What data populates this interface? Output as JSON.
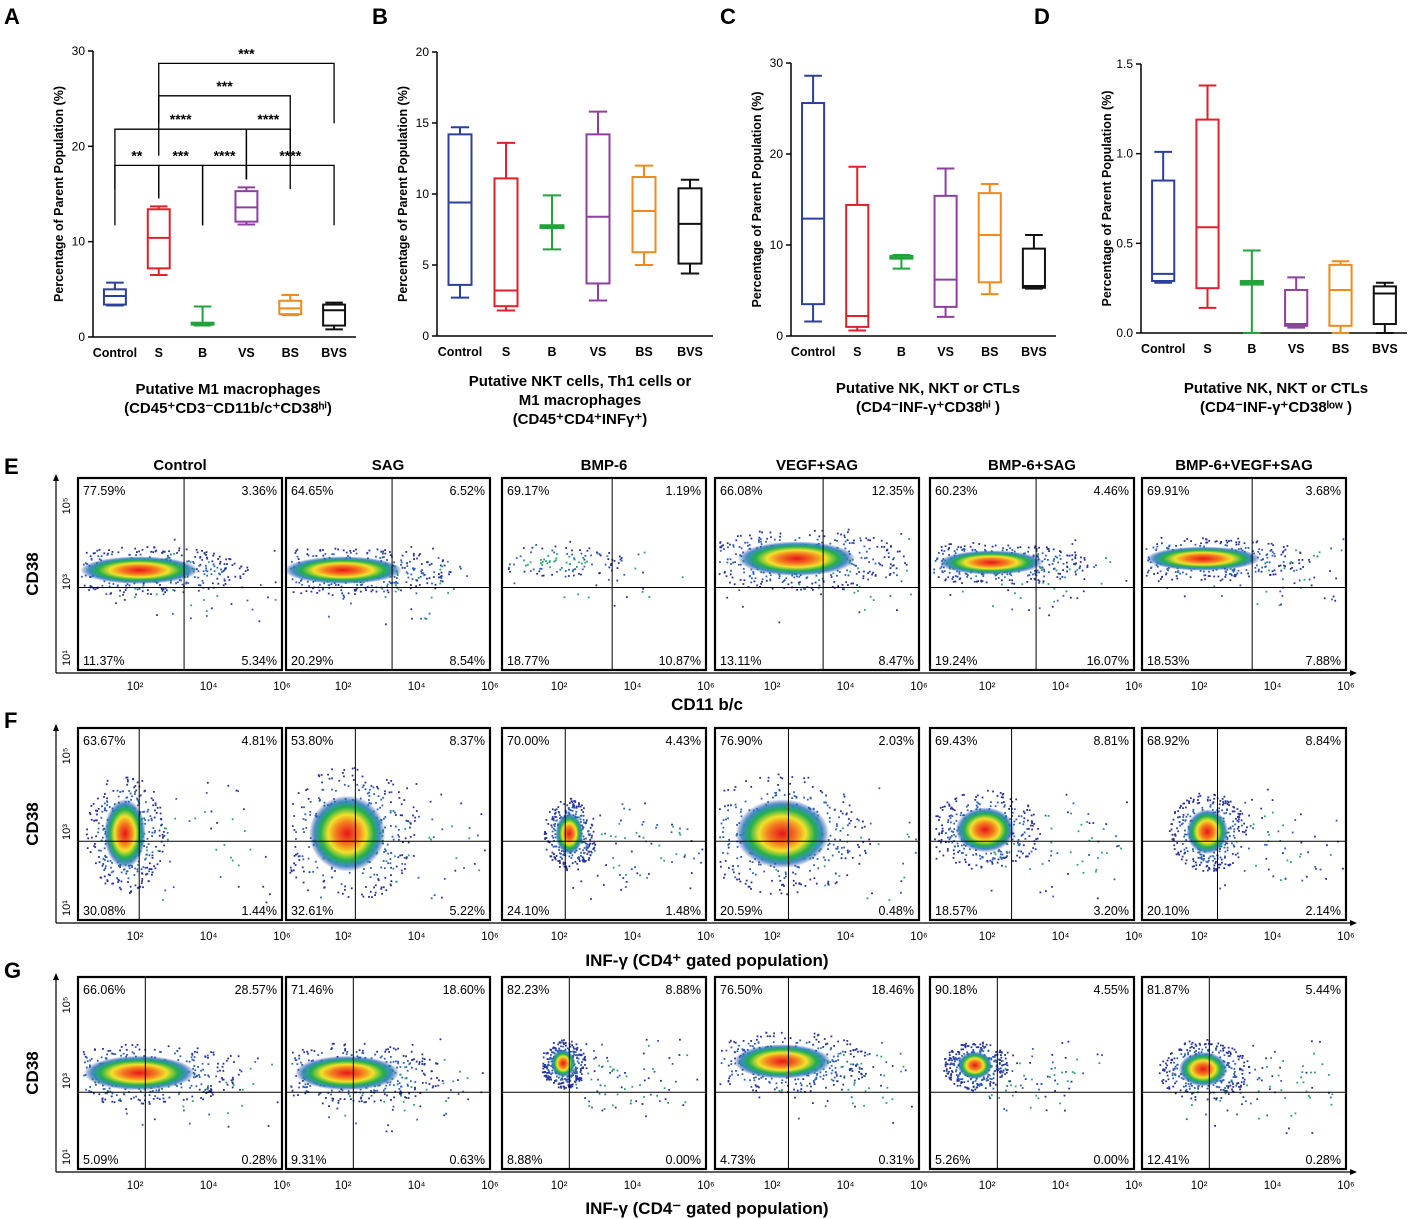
{
  "box_panels": [
    {
      "letter": "A",
      "ylabel": "Percentage of Parent Population (%)",
      "ylim": [
        0,
        30
      ],
      "yticks": [
        "0",
        "10",
        "20",
        "30"
      ],
      "title_lines": [
        "Putative M1 macrophages",
        "(CD45⁺CD3⁻CD11b/c⁺CD38ʰⁱ)"
      ],
      "categories": [
        "Control",
        "S",
        "B",
        "VS",
        "BS",
        "BVS"
      ],
      "boxes": [
        {
          "min": 3.3,
          "q1": 3.4,
          "median": 4.3,
          "q3": 5.0,
          "max": 5.7
        },
        {
          "min": 6.5,
          "q1": 7.2,
          "median": 10.4,
          "q3": 13.4,
          "max": 13.7
        },
        {
          "min": 1.2,
          "q1": 1.3,
          "median": 1.4,
          "q3": 1.5,
          "max": 3.2
        },
        {
          "min": 11.8,
          "q1": 12.1,
          "median": 13.6,
          "q3": 15.3,
          "max": 15.7
        },
        {
          "min": 2.3,
          "q1": 2.4,
          "median": 3.0,
          "q3": 3.8,
          "max": 4.4
        },
        {
          "min": 0.8,
          "q1": 1.2,
          "median": 2.8,
          "q3": 3.4,
          "max": 3.6
        }
      ],
      "significance": [
        {
          "from": 0,
          "to": 1,
          "label": "**",
          "y": 18.0
        },
        {
          "from": 1,
          "to": 2,
          "label": "***",
          "y": 18.0
        },
        {
          "from": 2,
          "to": 3,
          "label": "****",
          "y": 18.0
        },
        {
          "from": 3,
          "to": 5,
          "label": "****",
          "y": 18.0
        },
        {
          "from": 0,
          "to": 3,
          "label": "****",
          "y": 21.8
        },
        {
          "from": 3,
          "to": 4,
          "label": "****",
          "y": 21.8
        },
        {
          "from": 1,
          "to": 4,
          "label": "***",
          "y": 25.3
        },
        {
          "from": 1,
          "to": 5,
          "label": "***",
          "y": 28.7
        }
      ]
    },
    {
      "letter": "B",
      "ylabel": "Percentage of Parent Population (%)",
      "ylim": [
        0,
        20
      ],
      "yticks": [
        "0",
        "5",
        "10",
        "15",
        "20"
      ],
      "title_lines": [
        "Putative NKT cells, Th1 cells or",
        "M1 macrophages",
        "(CD45⁺CD4⁺INFγ⁺)"
      ],
      "categories": [
        "Control",
        "S",
        "B",
        "VS",
        "BS",
        "BVS"
      ],
      "boxes": [
        {
          "min": 2.7,
          "q1": 3.6,
          "median": 9.4,
          "q3": 14.2,
          "max": 14.7
        },
        {
          "min": 1.8,
          "q1": 2.1,
          "median": 3.2,
          "q3": 11.1,
          "max": 13.6
        },
        {
          "min": 6.1,
          "q1": 7.6,
          "median": 7.7,
          "q3": 7.8,
          "max": 9.9
        },
        {
          "min": 2.5,
          "q1": 3.7,
          "median": 8.4,
          "q3": 14.2,
          "max": 15.8
        },
        {
          "min": 5.0,
          "q1": 5.9,
          "median": 8.8,
          "q3": 11.2,
          "max": 12.0
        },
        {
          "min": 4.4,
          "q1": 5.1,
          "median": 7.9,
          "q3": 10.4,
          "max": 11.0
        }
      ],
      "significance": []
    },
    {
      "letter": "C",
      "ylabel": "Percentage of Parent Population (%)",
      "ylim": [
        0,
        30
      ],
      "yticks": [
        "0",
        "10",
        "20",
        "30"
      ],
      "title_lines": [
        "Putative NK, NKT or CTLs",
        "(CD4⁻INF-γ⁺CD38ʰⁱ )"
      ],
      "categories": [
        "Control",
        "S",
        "B",
        "VS",
        "BS",
        "BVS"
      ],
      "boxes": [
        {
          "min": 1.6,
          "q1": 3.5,
          "median": 12.9,
          "q3": 25.6,
          "max": 28.6
        },
        {
          "min": 0.6,
          "q1": 1.0,
          "median": 2.2,
          "q3": 14.4,
          "max": 18.6
        },
        {
          "min": 7.4,
          "q1": 8.5,
          "median": 8.6,
          "q3": 8.8,
          "max": 8.9
        },
        {
          "min": 2.1,
          "q1": 3.2,
          "median": 6.2,
          "q3": 15.4,
          "max": 18.4
        },
        {
          "min": 4.6,
          "q1": 5.9,
          "median": 11.1,
          "q3": 15.7,
          "max": 16.7
        },
        {
          "min": 5.2,
          "q1": 5.3,
          "median": 5.5,
          "q3": 9.6,
          "max": 11.1
        }
      ],
      "significance": []
    },
    {
      "letter": "D",
      "ylabel": "Percentage of Parent Population (%)",
      "ylim": [
        0,
        1.5
      ],
      "yticks": [
        "0.0",
        "0.5",
        "1.0",
        "1.5"
      ],
      "title_lines": [
        "Putative NK, NKT or CTLs",
        "(CD4⁻INF-γ⁺CD38ˡᵒʷ )"
      ],
      "categories": [
        "Control",
        "S",
        "B",
        "VS",
        "BS",
        "BVS"
      ],
      "boxes": [
        {
          "min": 0.28,
          "q1": 0.29,
          "median": 0.33,
          "q3": 0.85,
          "max": 1.01
        },
        {
          "min": 0.14,
          "q1": 0.25,
          "median": 0.59,
          "q3": 1.19,
          "max": 1.38
        },
        {
          "min": 0.0,
          "q1": 0.27,
          "median": 0.28,
          "q3": 0.29,
          "max": 0.46
        },
        {
          "min": 0.03,
          "q1": 0.04,
          "median": 0.05,
          "q3": 0.24,
          "max": 0.31
        },
        {
          "min": 0.0,
          "q1": 0.04,
          "median": 0.24,
          "q3": 0.38,
          "max": 0.4
        },
        {
          "min": 0.0,
          "q1": 0.05,
          "median": 0.22,
          "q3": 0.26,
          "max": 0.28
        }
      ],
      "significance": []
    }
  ],
  "category_colors": [
    "#2b3f9e",
    "#e0202a",
    "#22a33a",
    "#8f3fa0",
    "#f08a1c",
    "#111111"
  ],
  "flow_columns": [
    "Control",
    "SAG",
    "BMP-6",
    "VEGF+SAG",
    "BMP-6+SAG",
    "BMP-6+VEGF+SAG"
  ],
  "flow_rows": [
    {
      "letter": "E",
      "ylabel": "CD38",
      "xlabel": "CD11 b/c",
      "y_ticks": [
        "10¹",
        "10³",
        "10⁵"
      ],
      "x_ticks": [
        "10²",
        "10⁴",
        "10⁶"
      ],
      "quadrants": [
        [
          "77.59%",
          "3.36%",
          "11.37%",
          "5.34%"
        ],
        [
          "64.65%",
          "6.52%",
          "20.29%",
          "8.54%"
        ],
        [
          "69.17%",
          "1.19%",
          "18.77%",
          "10.87%"
        ],
        [
          "66.08%",
          "12.35%",
          "13.11%",
          "8.47%"
        ],
        [
          "60.23%",
          "4.46%",
          "19.24%",
          "16.07%"
        ],
        [
          "69.91%",
          "3.68%",
          "18.53%",
          "7.88%"
        ]
      ]
    },
    {
      "letter": "F",
      "ylabel": "CD38",
      "xlabel": "INF-γ (CD4⁺ gated population)",
      "y_ticks": [
        "10¹",
        "10³",
        "10⁵"
      ],
      "x_ticks": [
        "10²",
        "10⁴",
        "10⁶"
      ],
      "quadrants": [
        [
          "63.67%",
          "4.81%",
          "30.08%",
          "1.44%"
        ],
        [
          "53.80%",
          "8.37%",
          "32.61%",
          "5.22%"
        ],
        [
          "70.00%",
          "4.43%",
          "24.10%",
          "1.48%"
        ],
        [
          "76.90%",
          "2.03%",
          "20.59%",
          "0.48%"
        ],
        [
          "69.43%",
          "8.81%",
          "18.57%",
          "3.20%"
        ],
        [
          "68.92%",
          "8.84%",
          "20.10%",
          "2.14%"
        ]
      ]
    },
    {
      "letter": "G",
      "ylabel": "CD38",
      "xlabel": "INF-γ (CD4⁻ gated population)",
      "y_ticks": [
        "10¹",
        "10³",
        "10⁵"
      ],
      "x_ticks": [
        "10²",
        "10⁴",
        "10⁶"
      ],
      "quadrants": [
        [
          "66.06%",
          "28.57%",
          "5.09%",
          "0.28%"
        ],
        [
          "71.46%",
          "18.60%",
          "9.31%",
          "0.63%"
        ],
        [
          "82.23%",
          "8.88%",
          "8.88%",
          "0.00%"
        ],
        [
          "76.50%",
          "18.46%",
          "4.73%",
          "0.31%"
        ],
        [
          "90.18%",
          "4.55%",
          "5.26%",
          "0.00%"
        ],
        [
          "81.87%",
          "5.44%",
          "12.41%",
          "0.28%"
        ]
      ]
    }
  ],
  "chart_data": [
    {
      "type": "box",
      "panel": "A",
      "title": "Putative M1 macrophages (CD45⁺CD3⁻CD11b/c⁺CD38ʰⁱ)",
      "ylabel": "Percentage of Parent Population (%)",
      "ylim": [
        0,
        30
      ],
      "categories": [
        "Control",
        "S",
        "B",
        "VS",
        "BS",
        "BVS"
      ],
      "medians": [
        4.3,
        10.4,
        1.4,
        13.6,
        3.0,
        2.8
      ]
    },
    {
      "type": "box",
      "panel": "B",
      "title": "Putative NKT cells, Th1 cells or M1 macrophages (CD45⁺CD4⁺INFγ⁺)",
      "ylabel": "Percentage of Parent Population (%)",
      "ylim": [
        0,
        20
      ],
      "categories": [
        "Control",
        "S",
        "B",
        "VS",
        "BS",
        "BVS"
      ],
      "medians": [
        9.4,
        3.2,
        7.7,
        8.4,
        8.8,
        7.9
      ]
    },
    {
      "type": "box",
      "panel": "C",
      "title": "Putative NK, NKT or CTLs (CD4⁻INF-γ⁺CD38ʰⁱ )",
      "ylabel": "Percentage of Parent Population (%)",
      "ylim": [
        0,
        30
      ],
      "categories": [
        "Control",
        "S",
        "B",
        "VS",
        "BS",
        "BVS"
      ],
      "medians": [
        12.9,
        2.2,
        8.6,
        6.2,
        11.1,
        5.5
      ]
    },
    {
      "type": "box",
      "panel": "D",
      "title": "Putative NK, NKT or CTLs (CD4⁻INF-γ⁺CD38ˡᵒʷ )",
      "ylabel": "Percentage of Parent Population (%)",
      "ylim": [
        0,
        1.5
      ],
      "categories": [
        "Control",
        "S",
        "B",
        "VS",
        "BS",
        "BVS"
      ],
      "medians": [
        0.33,
        0.59,
        0.28,
        0.05,
        0.24,
        0.22
      ]
    },
    {
      "type": "scatter",
      "panels": "E-G",
      "description_source": "flow cytometry quadrant percentages per treatment (UL, UR, LL, LR)",
      "groups": [
        "Control",
        "SAG",
        "BMP-6",
        "VEGF+SAG",
        "BMP-6+SAG",
        "BMP-6+VEGF+SAG"
      ]
    }
  ]
}
